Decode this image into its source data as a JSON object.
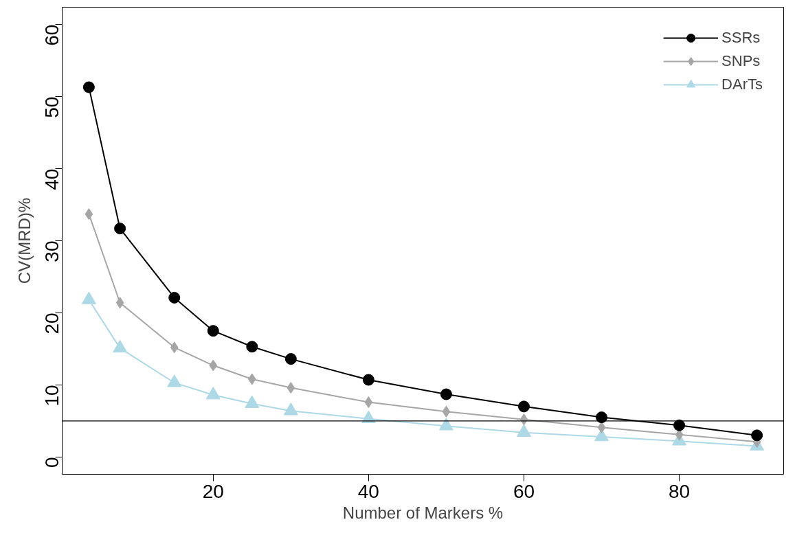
{
  "chart_data": {
    "type": "line",
    "xlabel": "Number of Markers %",
    "ylabel": "CV(MRD)%",
    "x": [
      4,
      8,
      15,
      20,
      25,
      30,
      40,
      50,
      60,
      70,
      80,
      90
    ],
    "series": [
      {
        "name": "SSRs",
        "color": "#000000",
        "marker": "circle",
        "values": [
          51.3,
          31.7,
          22.1,
          17.5,
          15.3,
          13.6,
          10.7,
          8.7,
          7.0,
          5.5,
          4.4,
          3.0
        ]
      },
      {
        "name": "SNPs",
        "color": "#a6a6a6",
        "marker": "diamond",
        "values": [
          33.7,
          21.4,
          15.2,
          12.7,
          10.8,
          9.6,
          7.6,
          6.3,
          5.2,
          4.1,
          3.1,
          2.1
        ]
      },
      {
        "name": "DArTs",
        "color": "#add8e6",
        "marker": "triangle",
        "values": [
          21.8,
          15.1,
          10.3,
          8.6,
          7.4,
          6.4,
          5.3,
          4.3,
          3.4,
          2.8,
          2.2,
          1.5
        ]
      }
    ],
    "xlim": [
      0.56,
      93.44
    ],
    "ylim": [
      -2.4,
      62.4
    ],
    "xticks": [
      20,
      40,
      60,
      80
    ],
    "yticks": [
      0,
      10,
      20,
      30,
      40,
      50,
      60
    ],
    "ref_lines": [
      {
        "axis": "y",
        "value": 5,
        "color": "#000000"
      }
    ],
    "grid": false,
    "legend": "top right"
  }
}
